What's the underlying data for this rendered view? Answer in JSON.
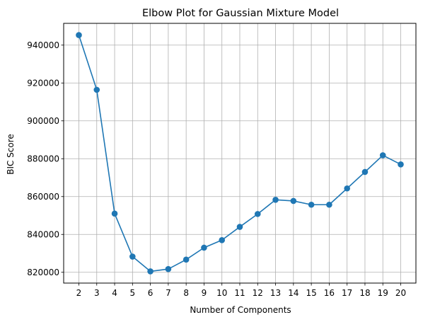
{
  "chart_data": {
    "type": "line",
    "title": "Elbow Plot for Gaussian Mixture Model",
    "xlabel": "Number of Components",
    "ylabel": "BIC Score",
    "x": [
      2,
      3,
      4,
      5,
      6,
      7,
      8,
      9,
      10,
      11,
      12,
      13,
      14,
      15,
      16,
      17,
      18,
      19,
      20
    ],
    "x_ticks": [
      "2",
      "3",
      "4",
      "5",
      "6",
      "7",
      "8",
      "9",
      "10",
      "11",
      "12",
      "13",
      "14",
      "15",
      "16",
      "17",
      "18",
      "19",
      "20"
    ],
    "series": [
      {
        "values": [
          945300,
          916400,
          851000,
          828300,
          820500,
          821700,
          826700,
          833000,
          837000,
          844000,
          850800,
          858300,
          857700,
          855700,
          855700,
          864300,
          873000,
          881800,
          877000
        ],
        "color": "#1f77b4",
        "marker": "circle"
      }
    ],
    "y_ticks": [
      "820000",
      "840000",
      "860000",
      "880000",
      "900000",
      "920000",
      "940000"
    ],
    "y_tick_values": [
      820000,
      840000,
      860000,
      880000,
      900000,
      920000,
      940000
    ],
    "xlim": [
      1.15,
      20.85
    ],
    "ylim": [
      814300,
      951500
    ],
    "grid": true,
    "grid_color": "#b0b0b0"
  }
}
